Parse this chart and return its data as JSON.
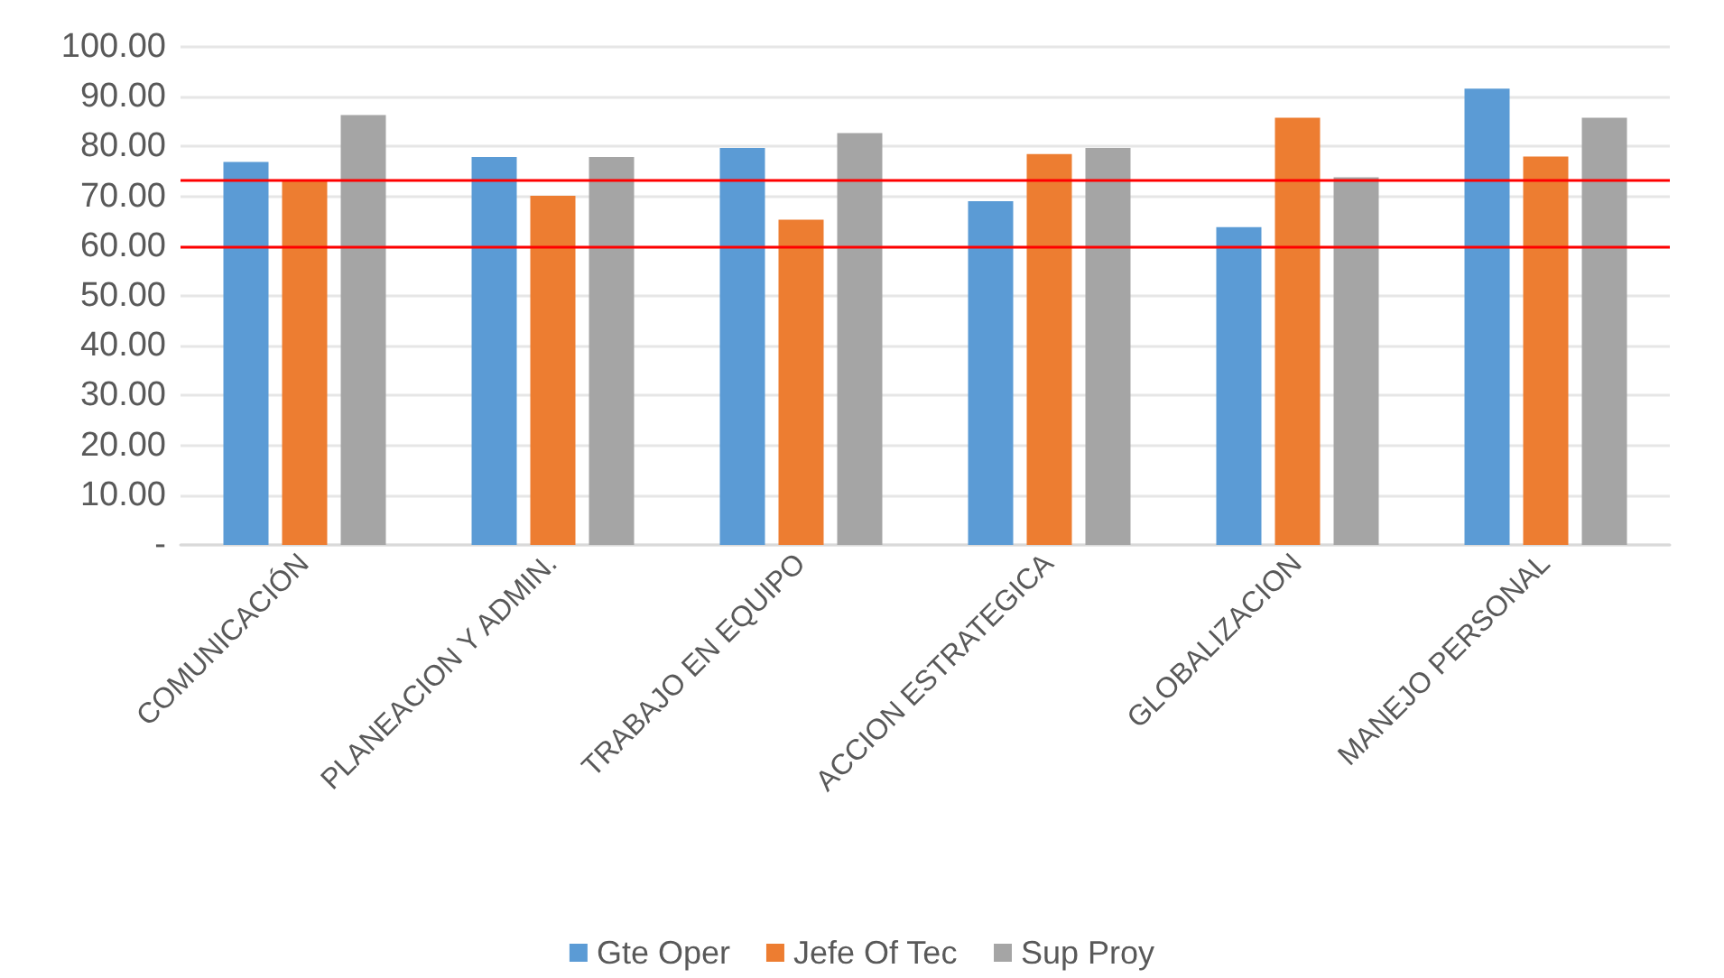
{
  "chart_data": {
    "type": "bar",
    "categories": [
      "COMUNICACIÓN",
      "PLANEACION Y ADMIN.",
      "TRABAJO EN EQUIPO",
      "ACCION ESTRATEGICA",
      "GLOBALIZACION",
      "MANEJO PERSONAL"
    ],
    "series": [
      {
        "name": "Gte Oper",
        "color": "#5b9bd5",
        "values": [
          76.9,
          77.9,
          79.7,
          69.0,
          63.8,
          91.6
        ]
      },
      {
        "name": "Jefe Of Tec",
        "color": "#ed7d31",
        "values": [
          73.3,
          70.1,
          65.3,
          78.5,
          85.8,
          78.0
        ]
      },
      {
        "name": "Sup Proy",
        "color": "#a5a5a5",
        "values": [
          86.3,
          77.9,
          82.7,
          79.7,
          73.8,
          85.8
        ]
      }
    ],
    "ylim": [
      0,
      100
    ],
    "yticks": [
      {
        "value": 0,
        "label": "-"
      },
      {
        "value": 10,
        "label": "10.00"
      },
      {
        "value": 20,
        "label": "20.00"
      },
      {
        "value": 30,
        "label": "30.00"
      },
      {
        "value": 40,
        "label": "40.00"
      },
      {
        "value": 50,
        "label": "50.00"
      },
      {
        "value": 60,
        "label": "60.00"
      },
      {
        "value": 70,
        "label": "70.00"
      },
      {
        "value": 80,
        "label": "80.00"
      },
      {
        "value": 90,
        "label": "90.00"
      },
      {
        "value": 100,
        "label": "100.00"
      }
    ],
    "ref_lines": [
      {
        "axis": "y",
        "value": 73.3,
        "color": "#ff0000"
      },
      {
        "axis": "y",
        "value": 60,
        "color": "#ff0000"
      }
    ],
    "grid": "y",
    "legend": "bottom"
  }
}
